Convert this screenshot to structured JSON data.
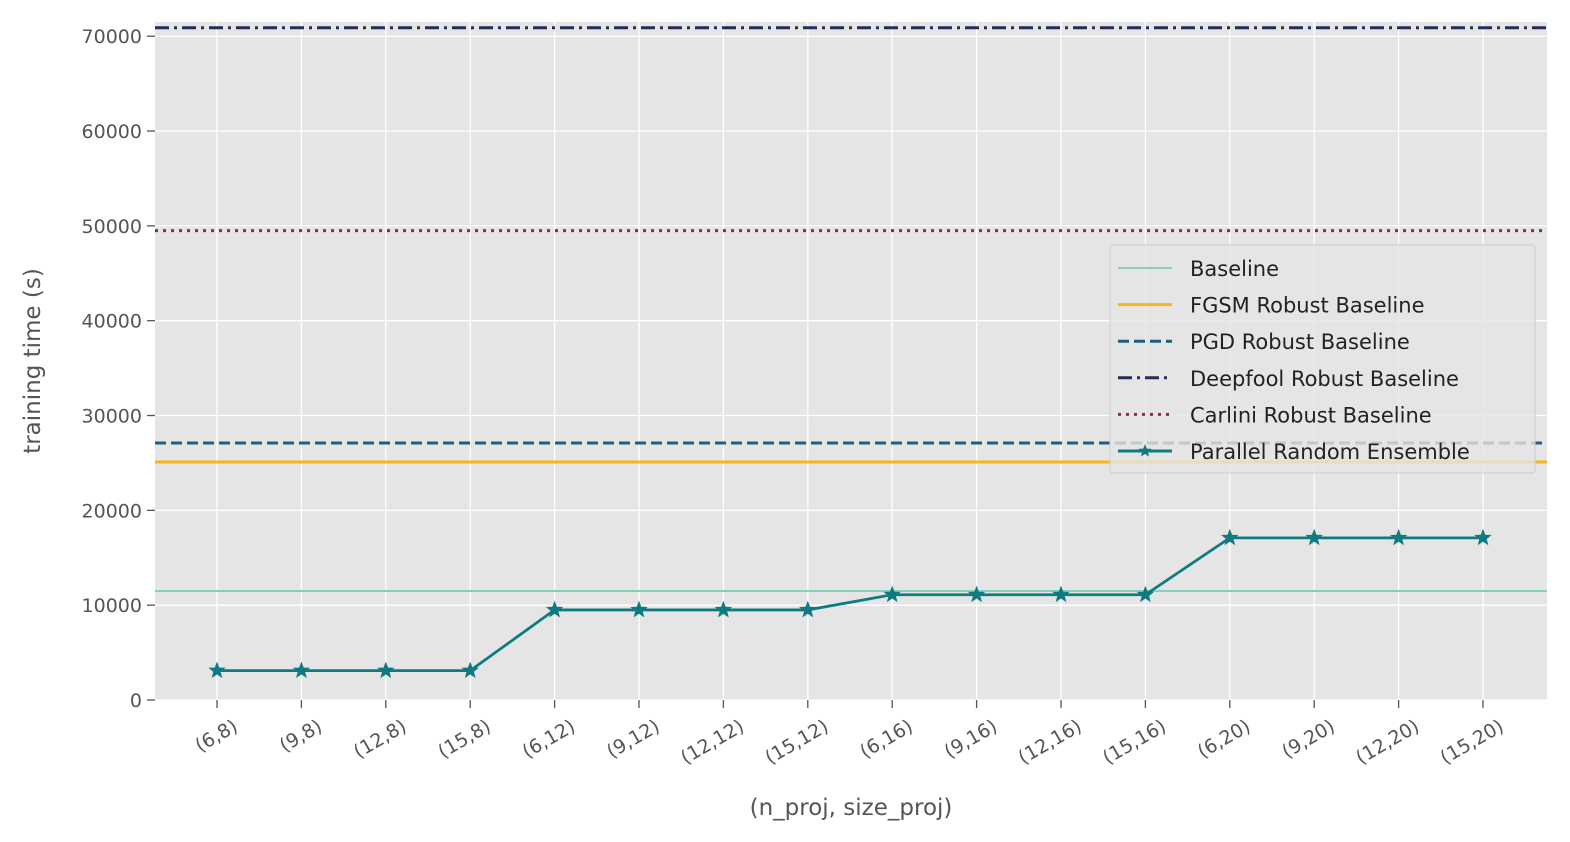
{
  "chart_data": {
    "type": "line",
    "xlabel": "(n_proj, size_proj)",
    "ylabel": "training time (s)",
    "categories": [
      "(6,8)",
      "(9,8)",
      "(12,8)",
      "(15,8)",
      "(6,12)",
      "(9,12)",
      "(12,12)",
      "(15,12)",
      "(6,16)",
      "(9,16)",
      "(12,16)",
      "(15,16)",
      "(6,20)",
      "(9,20)",
      "(12,20)",
      "(15,20)"
    ],
    "yticks": [
      0,
      10000,
      20000,
      30000,
      40000,
      50000,
      60000,
      70000
    ],
    "ylim": [
      0,
      71500
    ],
    "grid": true,
    "legend_position": "center-right",
    "baselines": [
      {
        "name": "Baseline",
        "value": 11500,
        "color": "#88cfc2",
        "style": "solid"
      },
      {
        "name": "FGSM Robust Baseline",
        "value": 25100,
        "color": "#f2b81e",
        "style": "solid"
      },
      {
        "name": "PGD Robust Baseline",
        "value": 27100,
        "color": "#1f5f7f",
        "style": "dashed"
      },
      {
        "name": "Deepfool Robust Baseline",
        "value": 70900,
        "color": "#232c5a",
        "style": "dashdot"
      },
      {
        "name": "Carlini Robust Baseline",
        "value": 49500,
        "color": "#8a2a55",
        "style": "dotted"
      }
    ],
    "series": [
      {
        "name": "Parallel Random Ensemble",
        "color": "#0f7b80",
        "marker": "star",
        "values": [
          3100,
          3100,
          3100,
          3100,
          9500,
          9500,
          9500,
          9500,
          11100,
          11100,
          11100,
          11100,
          17100,
          17100,
          17100,
          17100
        ]
      }
    ],
    "legend_order": [
      "Baseline",
      "FGSM Robust Baseline",
      "PGD Robust Baseline",
      "Deepfool Robust Baseline",
      "Carlini Robust Baseline",
      "Parallel Random Ensemble"
    ]
  }
}
